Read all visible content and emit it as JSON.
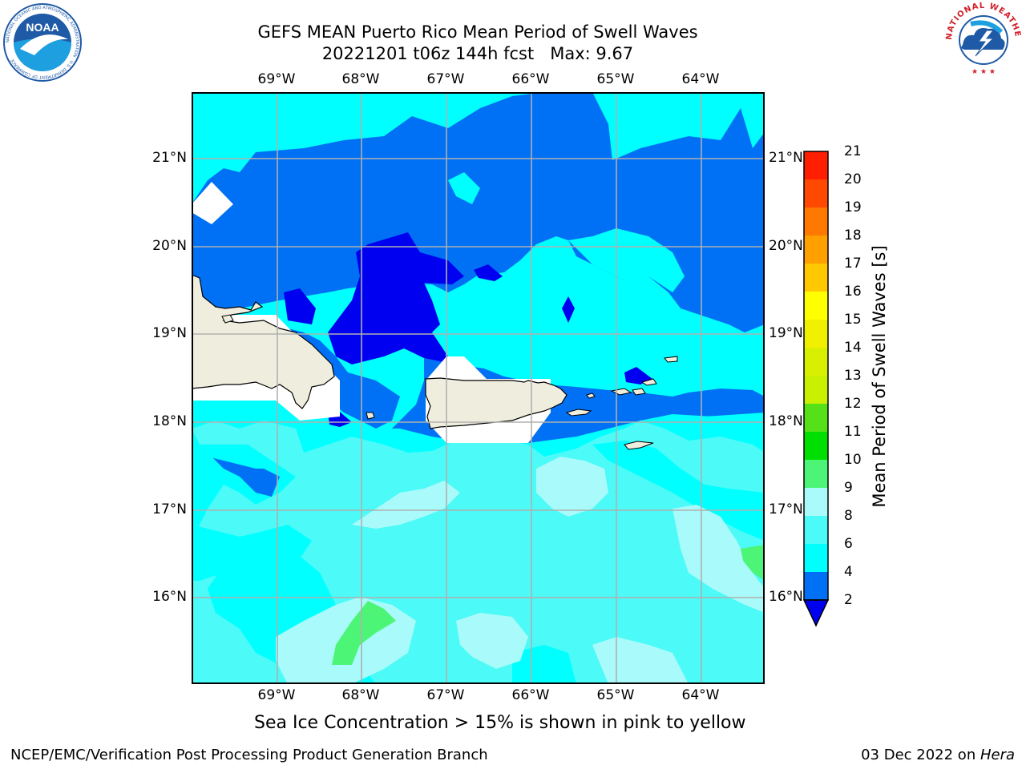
{
  "title_line1": "GEFS MEAN Puerto Rico Mean Period of Swell Waves",
  "title_line2": "20221201 t06z 144h fcst   Max: 9.67",
  "lon_labels": [
    "69°W",
    "68°W",
    "67°W",
    "66°W",
    "65°W",
    "64°W"
  ],
  "lat_labels": [
    "21°N",
    "20°N",
    "19°N",
    "18°N",
    "17°N",
    "16°N"
  ],
  "colorbar": {
    "label": "Mean Period of Swell Waves [s]",
    "ticks": [
      "21",
      "20",
      "19",
      "18",
      "17",
      "16",
      "15",
      "14",
      "13",
      "12",
      "11",
      "10",
      "9",
      "8",
      "6",
      "4",
      "2"
    ],
    "colors": {
      "lt2": "#0000f0",
      "c2_4": "#0070f5",
      "c4_6": "#00ffff",
      "c6_8": "#4cfaf8",
      "c8_9": "#a8fbfa",
      "c9_10": "#4df577",
      "c10_11": "#00e000",
      "c11_12": "#55e018",
      "c12_13": "#c8f000",
      "c13_14": "#d8f000",
      "c14_15": "#f0f000",
      "c15_16": "#ffff00",
      "c16_17": "#ffc800",
      "c17_18": "#ffa000",
      "c18_19": "#ff7800",
      "c19_20": "#ff4800",
      "c20_21": "#ff1e00",
      "gt21": "#ff0000"
    }
  },
  "caption": "Sea Ice Concentration > 15% is shown in pink to yellow",
  "footer": {
    "left": "NCEP/EMC/Verification Post Processing Product Generation Branch",
    "right_date": "03 Dec 2022 on ",
    "right_host": "Hera"
  },
  "logos": {
    "noaa_text": "NOAA",
    "noaa_ring": "NATIONAL OCEANIC AND ATMOSPHERIC ADMINISTRATION · U.S. DEPARTMENT OF COMMERCE",
    "nws_ring": "NATIONAL WEATHER SERVICE"
  },
  "colors": {
    "land": "#efeede",
    "grid": "#b0b0b0",
    "noaa_blue": "#1f5aa6",
    "nws_red": "#d0202a"
  }
}
